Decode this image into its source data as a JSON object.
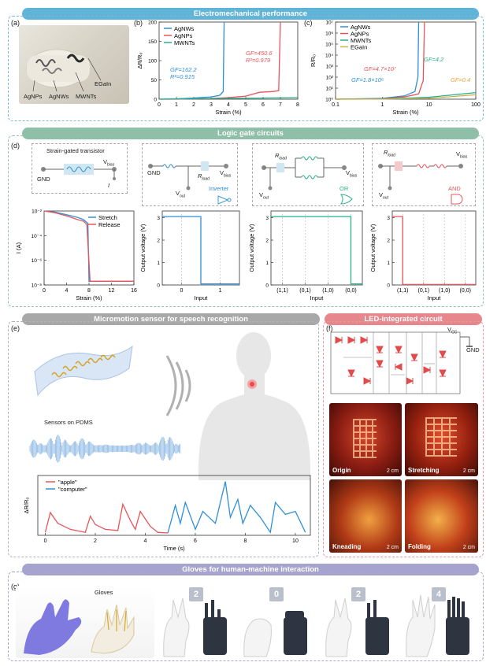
{
  "banners": {
    "electro": "Electromechanical performance",
    "logic": "Logic gate circuits",
    "speech": "Micromotion sensor for speech recognition",
    "led": "LED-integrated circuit",
    "gloves": "Gloves for human-machine interaction"
  },
  "panel_labels": {
    "a": "(a)",
    "b": "(b)",
    "c": "(c)",
    "d": "(d)",
    "e": "(e)",
    "f": "(f)",
    "g": "(g)"
  },
  "panel_a": {
    "labels": [
      "AgNPs",
      "AgNWs",
      "MWNTs",
      "EGaIn"
    ]
  },
  "panel_b": {
    "ylabel": "ΔR/R₀",
    "xlabel": "Strain (%)",
    "xticks": [
      "0",
      "1",
      "2",
      "3",
      "4",
      "5",
      "6",
      "7",
      "8"
    ],
    "yticks": [
      "0",
      "50",
      "100",
      "150",
      "200"
    ],
    "legend": [
      "AgNWs",
      "AgNPs",
      "MWNTs"
    ],
    "ann1": [
      "GF=162.2",
      "R²=0.915"
    ],
    "ann2": [
      "GF=450.6",
      "R²=0.979"
    ]
  },
  "panel_c": {
    "ylabel": "R/R₀",
    "xlabel": "Strain (%)",
    "xticks": [
      "0.1",
      "1",
      "10",
      "100"
    ],
    "yticks": [
      "10⁰",
      "10¹",
      "10²",
      "10³",
      "10⁴",
      "10⁵",
      "10⁶",
      "10⁷"
    ],
    "legend": [
      "AgNWs",
      "AgNPs",
      "MWNTs",
      "EGaIn"
    ],
    "ann": [
      "GF=4.7×10⁷",
      "GF=1.8×10⁶",
      "GF=4.2",
      "GF=0.4"
    ]
  },
  "panel_d": {
    "transistor_title": "Strain-gated transistor",
    "gnd": "GND",
    "vbias": "V",
    "vbias_sub": "bias",
    "i_label": "I",
    "rload": "R",
    "rload_sub": "load",
    "vout": "V",
    "vout_sub": "out",
    "gates": [
      "Inverter",
      "OR",
      "AND"
    ],
    "plot1": {
      "ylabel": "I (A)",
      "xlabel": "Strain (%)",
      "xticks": [
        "0",
        "4",
        "8",
        "12",
        "16"
      ],
      "yticks": [
        "10⁻²",
        "10⁻⁴",
        "10⁻⁶",
        "10⁻⁸"
      ],
      "legend": [
        "Stretch",
        "Release"
      ]
    },
    "plot2": {
      "ylabel": "Output voltage (V)",
      "xlabel": "Input",
      "xticks": [
        "0",
        "1"
      ],
      "yticks": [
        "0",
        "1",
        "2",
        "3"
      ]
    },
    "plot3": {
      "ylabel": "Output voltage (V)",
      "xlabel": "Input",
      "xticks": [
        "(1,1)",
        "(0,1)",
        "(1,0)",
        "(0,0)"
      ],
      "yticks": [
        "0",
        "1",
        "2",
        "3"
      ]
    },
    "plot4": {
      "ylabel": "Output voltage (V)",
      "xlabel": "Input",
      "xticks": [
        "(1,1)",
        "(0,1)",
        "(1,0)",
        "(0,0)"
      ],
      "yticks": [
        "0",
        "1",
        "2",
        "3"
      ]
    }
  },
  "panel_e": {
    "sensors_label": "Sensors on PDMS",
    "ylabel": "ΔR/R₀",
    "xlabel": "Time (s)",
    "xticks": [
      "0",
      "2",
      "4",
      "6",
      "8",
      "10"
    ],
    "legend": [
      "\"apple\"",
      "\"computer\""
    ]
  },
  "panel_f": {
    "vcc": "V",
    "vcc_sub": "CC",
    "gnd": "GND",
    "photos": [
      {
        "label": "Origin",
        "scale": "2 cm"
      },
      {
        "label": "Stretching",
        "scale": "2 cm"
      },
      {
        "label": "Kneading",
        "scale": "2 cm"
      },
      {
        "label": "Folding",
        "scale": "2 cm"
      }
    ]
  },
  "panel_g": {
    "gloves_label": "Gloves",
    "numbers": [
      "2",
      "0",
      "2",
      "4"
    ]
  },
  "colors": {
    "blue": "#2f8fd8",
    "red": "#e8545a",
    "green": "#27b18a",
    "olive": "#c9b24a",
    "orange": "#f2a33a",
    "banner_blue": "#5fb4d8",
    "banner_green": "#8fbfa8",
    "banner_gray": "#a8a8a8",
    "banner_pink": "#e6878c",
    "banner_purple": "#a7a3cf"
  },
  "chart_data": [
    {
      "type": "line",
      "title": "",
      "xlabel": "Strain (%)",
      "ylabel": "ΔR/R₀",
      "xlim": [
        0,
        8
      ],
      "ylim": [
        0,
        200
      ],
      "series": [
        {
          "name": "AgNWs",
          "x": [
            0,
            1,
            2,
            3,
            3.5,
            3.7,
            3.75
          ],
          "y": [
            0,
            1,
            3,
            6,
            10,
            20,
            200
          ]
        },
        {
          "name": "AgNPs",
          "x": [
            0,
            1,
            2,
            3,
            4,
            5,
            5.8,
            6.6,
            6.9,
            7.0
          ],
          "y": [
            0,
            0,
            1,
            2,
            4,
            8,
            18,
            20,
            22,
            200
          ]
        },
        {
          "name": "MWNTs",
          "x": [
            0,
            2,
            4,
            6,
            8
          ],
          "y": [
            0,
            1,
            2,
            3,
            4
          ]
        }
      ]
    },
    {
      "type": "line",
      "title": "",
      "xlabel": "Strain (%)",
      "ylabel": "R/R₀",
      "xscale": "log",
      "yscale": "log",
      "xlim": [
        0.1,
        100
      ],
      "ylim": [
        1,
        10000000
      ],
      "series": [
        {
          "name": "AgNWs",
          "x": [
            0.1,
            1,
            3,
            5,
            5.8,
            6
          ],
          "y": [
            1,
            1.2,
            2,
            5,
            100,
            10000000
          ]
        },
        {
          "name": "AgNPs",
          "x": [
            0.1,
            1,
            3,
            6,
            7.5,
            8
          ],
          "y": [
            1,
            1.1,
            1.6,
            3,
            50,
            10000000
          ]
        },
        {
          "name": "MWNTs",
          "x": [
            0.1,
            1,
            10,
            100
          ],
          "y": [
            1,
            1.05,
            1.5,
            4
          ]
        },
        {
          "name": "EGaIn",
          "x": [
            0.1,
            1,
            10,
            100
          ],
          "y": [
            1,
            1.01,
            1.2,
            2.5
          ]
        }
      ]
    },
    {
      "type": "line",
      "title": "",
      "xlabel": "Strain (%)",
      "ylabel": "I (A)",
      "yscale": "log",
      "xlim": [
        0,
        16
      ],
      "ylim": [
        1e-08,
        0.01
      ],
      "series": [
        {
          "name": "Stretch",
          "x": [
            0,
            2,
            4,
            6,
            7,
            7.8,
            8,
            16
          ],
          "y": [
            0.01,
            0.008,
            0.005,
            0.003,
            0.002,
            0.001,
            2e-08,
            2e-08
          ]
        },
        {
          "name": "Release",
          "x": [
            0,
            2,
            4,
            6,
            7,
            7.6,
            8.2,
            16
          ],
          "y": [
            0.01,
            0.007,
            0.004,
            0.002,
            0.0015,
            0.0008,
            2e-08,
            2e-08
          ]
        }
      ]
    },
    {
      "type": "line",
      "title": "",
      "xlabel": "Input",
      "ylabel": "Output voltage (V)",
      "xlim": [
        -0.5,
        1.5
      ],
      "ylim": [
        0,
        3.3
      ],
      "series": [
        {
          "x": [
            -0.5,
            0.5,
            0.5,
            1.5
          ],
          "y": [
            3.05,
            3.05,
            0.05,
            0.05
          ]
        }
      ]
    },
    {
      "type": "line",
      "title": "",
      "xlabel": "Input",
      "ylabel": "Output voltage (V)",
      "xlim": [
        0,
        4
      ],
      "ylim": [
        0,
        3.3
      ],
      "series": [
        {
          "x": [
            0,
            3.5,
            3.5,
            4
          ],
          "y": [
            3.05,
            3.05,
            0.05,
            0.05
          ]
        }
      ]
    },
    {
      "type": "line",
      "title": "",
      "xlabel": "Input",
      "ylabel": "Output voltage (V)",
      "xlim": [
        0,
        4
      ],
      "ylim": [
        0,
        3.3
      ],
      "series": [
        {
          "x": [
            0,
            0.5,
            0.5,
            4
          ],
          "y": [
            3.05,
            3.05,
            0.02,
            0.02
          ]
        }
      ]
    },
    {
      "type": "line",
      "title": "",
      "xlabel": "Time (s)",
      "ylabel": "ΔR/R₀",
      "xlim": [
        -0.3,
        10.6
      ],
      "ylim": [
        0,
        1
      ],
      "series": [
        {
          "name": "\"apple\"",
          "x": [
            0,
            0.2,
            0.5,
            1.0,
            1.6,
            1.8,
            2.0,
            2.4,
            2.9,
            3.1,
            3.4,
            3.6,
            3.8,
            4.2,
            4.5,
            4.9
          ],
          "y": [
            0.05,
            0.38,
            0.2,
            0.1,
            0.05,
            0.32,
            0.18,
            0.1,
            0.08,
            0.52,
            0.25,
            0.1,
            0.4,
            0.15,
            0.05,
            0.04
          ]
        },
        {
          "name": "\"computer\"",
          "x": [
            4.9,
            5.2,
            5.4,
            5.6,
            6.0,
            6.3,
            6.8,
            7.2,
            7.4,
            7.7,
            7.9,
            8.2,
            8.6,
            9.0,
            9.2,
            9.6,
            10.0,
            10.4
          ],
          "y": [
            0.04,
            0.5,
            0.2,
            0.55,
            0.1,
            0.4,
            0.2,
            0.9,
            0.3,
            0.6,
            0.2,
            0.5,
            0.3,
            0.05,
            0.55,
            0.35,
            0.4,
            0.05
          ]
        }
      ]
    }
  ]
}
